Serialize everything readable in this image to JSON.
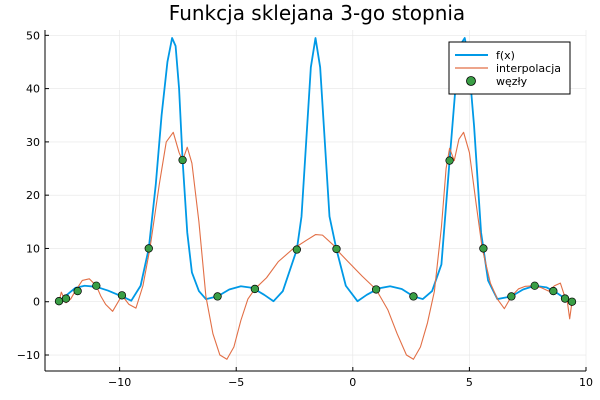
{
  "chart_data": {
    "type": "line",
    "title": "Funkcja sklejana 3-go stopnia",
    "xlabel": "",
    "ylabel": "",
    "xlim": [
      -13.2,
      10
    ],
    "ylim": [
      -13,
      51
    ],
    "x_ticks": [
      -10,
      -5,
      0,
      5,
      10
    ],
    "y_ticks": [
      -10,
      0,
      10,
      20,
      30,
      40,
      50
    ],
    "x_tick_labels": [
      "−10",
      "−5",
      "0",
      "5",
      "10"
    ],
    "y_tick_labels": [
      "−10",
      "0",
      "10",
      "20",
      "30",
      "40",
      "50"
    ],
    "grid": true,
    "legend_position": "top-right",
    "series": [
      {
        "name": "f(x)",
        "color": "#0099e6",
        "style": "line",
        "points": [
          [
            -12.6,
            0.1
          ],
          [
            -12.2,
            1.5
          ],
          [
            -11.9,
            2.6
          ],
          [
            -11.5,
            3.0
          ],
          [
            -11.0,
            2.8
          ],
          [
            -10.5,
            2.1
          ],
          [
            -9.9,
            1.0
          ],
          [
            -9.5,
            0.2
          ],
          [
            -9.1,
            3.0
          ],
          [
            -8.75,
            10.0
          ],
          [
            -8.45,
            22.0
          ],
          [
            -8.2,
            35.0
          ],
          [
            -7.95,
            45.0
          ],
          [
            -7.75,
            49.5
          ],
          [
            -7.6,
            48.0
          ],
          [
            -7.45,
            40.0
          ],
          [
            -7.3,
            26.6
          ],
          [
            -7.1,
            13.0
          ],
          [
            -6.9,
            5.5
          ],
          [
            -6.6,
            2.0
          ],
          [
            -6.3,
            0.5
          ],
          [
            -5.8,
            1.0
          ],
          [
            -5.3,
            2.3
          ],
          [
            -4.8,
            2.9
          ],
          [
            -4.3,
            2.6
          ],
          [
            -3.8,
            1.3
          ],
          [
            -3.4,
            0.1
          ],
          [
            -3.0,
            2.0
          ],
          [
            -2.4,
            9.8
          ],
          [
            -2.2,
            16.0
          ],
          [
            -2.0,
            30.0
          ],
          [
            -1.8,
            44.0
          ],
          [
            -1.6,
            49.5
          ],
          [
            -1.4,
            44.0
          ],
          [
            -1.2,
            30.0
          ],
          [
            -1.0,
            16.0
          ],
          [
            -0.7,
            9.8
          ],
          [
            -0.3,
            3.0
          ],
          [
            0.2,
            0.1
          ],
          [
            0.6,
            1.3
          ],
          [
            1.1,
            2.5
          ],
          [
            1.6,
            2.9
          ],
          [
            2.1,
            2.4
          ],
          [
            2.6,
            1.0
          ],
          [
            3.0,
            0.5
          ],
          [
            3.4,
            2.0
          ],
          [
            3.8,
            7.0
          ],
          [
            4.15,
            26.5
          ],
          [
            4.4,
            40.0
          ],
          [
            4.65,
            48.5
          ],
          [
            4.8,
            49.5
          ],
          [
            4.95,
            46.0
          ],
          [
            5.2,
            33.0
          ],
          [
            5.5,
            13.0
          ],
          [
            5.8,
            4.0
          ],
          [
            6.2,
            0.5
          ],
          [
            6.8,
            1.0
          ],
          [
            7.3,
            2.3
          ],
          [
            7.8,
            3.0
          ],
          [
            8.3,
            2.7
          ],
          [
            8.7,
            1.8
          ],
          [
            9.1,
            0.6
          ],
          [
            9.4,
            0.0
          ]
        ]
      },
      {
        "name": "interpolacja",
        "color": "#e26f46",
        "style": "line",
        "points": [
          [
            -12.6,
            0.0
          ],
          [
            -12.5,
            1.8
          ],
          [
            -12.4,
            0.8
          ],
          [
            -12.3,
            -0.2
          ],
          [
            -12.1,
            0.5
          ],
          [
            -11.9,
            2.0
          ],
          [
            -11.6,
            4.0
          ],
          [
            -11.3,
            4.3
          ],
          [
            -11.0,
            3.0
          ],
          [
            -10.8,
            1.0
          ],
          [
            -10.6,
            -0.5
          ],
          [
            -10.3,
            -1.8
          ],
          [
            -9.9,
            1.2
          ],
          [
            -9.6,
            -0.5
          ],
          [
            -9.3,
            -1.2
          ],
          [
            -9.0,
            3.0
          ],
          [
            -8.7,
            10.0
          ],
          [
            -8.3,
            22.0
          ],
          [
            -8.0,
            30.0
          ],
          [
            -7.7,
            31.8
          ],
          [
            -7.45,
            28.0
          ],
          [
            -7.3,
            26.5
          ],
          [
            -7.1,
            29.0
          ],
          [
            -6.9,
            26.0
          ],
          [
            -6.6,
            15.0
          ],
          [
            -6.3,
            1.0
          ],
          [
            -6.0,
            -6.0
          ],
          [
            -5.7,
            -10.0
          ],
          [
            -5.4,
            -10.8
          ],
          [
            -5.1,
            -8.5
          ],
          [
            -4.8,
            -3.5
          ],
          [
            -4.5,
            0.5
          ],
          [
            -4.2,
            2.4
          ],
          [
            -3.7,
            4.5
          ],
          [
            -3.2,
            7.5
          ],
          [
            -2.6,
            9.8
          ],
          [
            -2.0,
            11.5
          ],
          [
            -1.6,
            12.6
          ],
          [
            -1.3,
            12.5
          ],
          [
            -0.8,
            10.5
          ],
          [
            -0.7,
            9.8
          ],
          [
            -0.2,
            7.5
          ],
          [
            0.4,
            4.8
          ],
          [
            1.0,
            2.3
          ],
          [
            1.5,
            -1.5
          ],
          [
            1.9,
            -6.0
          ],
          [
            2.3,
            -10.0
          ],
          [
            2.6,
            -10.8
          ],
          [
            2.9,
            -8.5
          ],
          [
            3.2,
            -4.0
          ],
          [
            3.5,
            2.0
          ],
          [
            3.8,
            14.0
          ],
          [
            4.0,
            25.0
          ],
          [
            4.15,
            28.8
          ],
          [
            4.35,
            26.5
          ],
          [
            4.55,
            30.5
          ],
          [
            4.75,
            31.8
          ],
          [
            5.0,
            28.0
          ],
          [
            5.3,
            18.0
          ],
          [
            5.55,
            10.0
          ],
          [
            5.9,
            3.5
          ],
          [
            6.2,
            0.5
          ],
          [
            6.5,
            -1.3
          ],
          [
            6.8,
            1.0
          ],
          [
            7.1,
            2.4
          ],
          [
            7.4,
            2.9
          ],
          [
            7.8,
            3.0
          ],
          [
            8.1,
            2.6
          ],
          [
            8.4,
            2.0
          ],
          [
            8.65,
            3.0
          ],
          [
            8.9,
            3.5
          ],
          [
            9.05,
            1.5
          ],
          [
            9.2,
            0.0
          ],
          [
            9.3,
            -3.2
          ],
          [
            9.4,
            0.0
          ]
        ]
      },
      {
        "name": "węzły",
        "color": "#3a9e45",
        "style": "scatter",
        "points": [
          [
            -12.6,
            0.1
          ],
          [
            -12.3,
            0.6
          ],
          [
            -11.8,
            2.0
          ],
          [
            -11.0,
            3.0
          ],
          [
            -9.9,
            1.2
          ],
          [
            -8.75,
            10.0
          ],
          [
            -7.3,
            26.6
          ],
          [
            -5.8,
            1.0
          ],
          [
            -4.2,
            2.4
          ],
          [
            -2.4,
            9.8
          ],
          [
            -0.7,
            9.9
          ],
          [
            1.0,
            2.3
          ],
          [
            2.6,
            1.0
          ],
          [
            4.15,
            26.5
          ],
          [
            5.6,
            10.0
          ],
          [
            6.8,
            1.0
          ],
          [
            7.8,
            3.0
          ],
          [
            8.6,
            2.0
          ],
          [
            9.1,
            0.6
          ],
          [
            9.4,
            0.0
          ]
        ]
      }
    ]
  }
}
